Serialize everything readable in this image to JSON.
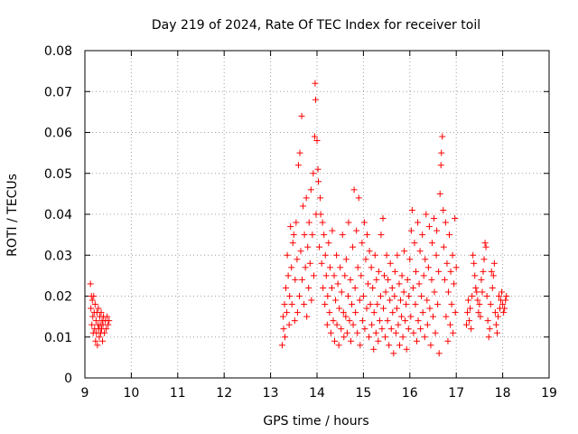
{
  "chart_data": {
    "type": "scatter",
    "title": "Day 219 of 2024, Rate Of TEC Index for receiver toil",
    "xlabel": "GPS time / hours",
    "ylabel": "ROTI / TECUs",
    "xlim": [
      9,
      19
    ],
    "ylim": [
      0,
      0.08
    ],
    "xticks": [
      "9",
      "10",
      "11",
      "12",
      "13",
      "14",
      "15",
      "16",
      "17",
      "18",
      "19"
    ],
    "yticks": [
      "0",
      "0.01",
      "0.02",
      "0.03",
      "0.04",
      "0.05",
      "0.06",
      "0.07",
      "0.08"
    ],
    "grid": true,
    "marker": "+",
    "series": [
      {
        "name": "ROTI",
        "color": "#ff0000",
        "points": [
          [
            9.12,
            0.023
          ],
          [
            9.13,
            0.017
          ],
          [
            9.14,
            0.02
          ],
          [
            9.15,
            0.013
          ],
          [
            9.16,
            0.019
          ],
          [
            9.17,
            0.015
          ],
          [
            9.18,
            0.011
          ],
          [
            9.19,
            0.02
          ],
          [
            9.2,
            0.016
          ],
          [
            9.21,
            0.012
          ],
          [
            9.22,
            0.018
          ],
          [
            9.23,
            0.009
          ],
          [
            9.24,
            0.014
          ],
          [
            9.25,
            0.011
          ],
          [
            9.26,
            0.016
          ],
          [
            9.27,
            0.008
          ],
          [
            9.28,
            0.013
          ],
          [
            9.29,
            0.017
          ],
          [
            9.3,
            0.012
          ],
          [
            9.31,
            0.01
          ],
          [
            9.32,
            0.015
          ],
          [
            9.33,
            0.013
          ],
          [
            9.34,
            0.011
          ],
          [
            9.35,
            0.016
          ],
          [
            9.36,
            0.012
          ],
          [
            9.37,
            0.014
          ],
          [
            9.38,
            0.009
          ],
          [
            9.39,
            0.013
          ],
          [
            9.4,
            0.015
          ],
          [
            9.42,
            0.011
          ],
          [
            9.44,
            0.014
          ],
          [
            9.46,
            0.012
          ],
          [
            9.48,
            0.015
          ],
          [
            9.5,
            0.013
          ],
          [
            9.52,
            0.014
          ],
          [
            13.25,
            0.008
          ],
          [
            13.27,
            0.015
          ],
          [
            13.28,
            0.012
          ],
          [
            13.3,
            0.018
          ],
          [
            13.31,
            0.01
          ],
          [
            13.33,
            0.022
          ],
          [
            13.35,
            0.016
          ],
          [
            13.36,
            0.03
          ],
          [
            13.38,
            0.025
          ],
          [
            13.4,
            0.013
          ],
          [
            13.41,
            0.02
          ],
          [
            13.43,
            0.037
          ],
          [
            13.45,
            0.027
          ],
          [
            13.46,
            0.018
          ],
          [
            13.48,
            0.033
          ],
          [
            13.5,
            0.035
          ],
          [
            13.52,
            0.014
          ],
          [
            13.53,
            0.024
          ],
          [
            13.55,
            0.038
          ],
          [
            13.57,
            0.029
          ],
          [
            13.58,
            0.016
          ],
          [
            13.6,
            0.052
          ],
          [
            13.62,
            0.02
          ],
          [
            13.63,
            0.055
          ],
          [
            13.65,
            0.031
          ],
          [
            13.67,
            0.064
          ],
          [
            13.68,
            0.024
          ],
          [
            13.7,
            0.042
          ],
          [
            13.72,
            0.018
          ],
          [
            13.73,
            0.035
          ],
          [
            13.75,
            0.027
          ],
          [
            13.77,
            0.044
          ],
          [
            13.78,
            0.015
          ],
          [
            13.8,
            0.032
          ],
          [
            13.82,
            0.022
          ],
          [
            13.83,
            0.038
          ],
          [
            13.85,
            0.028
          ],
          [
            13.87,
            0.046
          ],
          [
            13.88,
            0.019
          ],
          [
            13.9,
            0.035
          ],
          [
            13.92,
            0.05
          ],
          [
            13.93,
            0.025
          ],
          [
            13.95,
            0.059
          ],
          [
            13.96,
            0.072
          ],
          [
            13.97,
            0.068
          ],
          [
            13.98,
            0.04
          ],
          [
            14.0,
            0.058
          ],
          [
            14.02,
            0.051
          ],
          [
            14.03,
            0.048
          ],
          [
            14.05,
            0.032
          ],
          [
            14.07,
            0.044
          ],
          [
            14.08,
            0.04
          ],
          [
            14.1,
            0.028
          ],
          [
            14.12,
            0.038
          ],
          [
            14.13,
            0.022
          ],
          [
            14.15,
            0.035
          ],
          [
            14.17,
            0.018
          ],
          [
            14.18,
            0.03
          ],
          [
            14.2,
            0.025
          ],
          [
            14.22,
            0.013
          ],
          [
            14.23,
            0.02
          ],
          [
            14.25,
            0.033
          ],
          [
            14.27,
            0.016
          ],
          [
            14.28,
            0.027
          ],
          [
            14.3,
            0.011
          ],
          [
            14.32,
            0.022
          ],
          [
            14.33,
            0.036
          ],
          [
            14.35,
            0.014
          ],
          [
            14.37,
            0.025
          ],
          [
            14.38,
            0.009
          ],
          [
            14.4,
            0.019
          ],
          [
            14.42,
            0.03
          ],
          [
            14.43,
            0.013
          ],
          [
            14.45,
            0.023
          ],
          [
            14.47,
            0.008
          ],
          [
            14.48,
            0.017
          ],
          [
            14.5,
            0.027
          ],
          [
            14.52,
            0.012
          ],
          [
            14.53,
            0.021
          ],
          [
            14.55,
            0.035
          ],
          [
            14.57,
            0.016
          ],
          [
            14.58,
            0.01
          ],
          [
            14.6,
            0.025
          ],
          [
            14.62,
            0.015
          ],
          [
            14.63,
            0.029
          ],
          [
            14.65,
            0.011
          ],
          [
            14.67,
            0.02
          ],
          [
            14.68,
            0.038
          ],
          [
            14.7,
            0.014
          ],
          [
            14.72,
            0.024
          ],
          [
            14.73,
            0.009
          ],
          [
            14.75,
            0.018
          ],
          [
            14.77,
            0.032
          ],
          [
            14.78,
            0.013
          ],
          [
            14.8,
            0.046
          ],
          [
            14.82,
            0.022
          ],
          [
            14.83,
            0.016
          ],
          [
            14.85,
            0.036
          ],
          [
            14.87,
            0.011
          ],
          [
            14.88,
            0.027
          ],
          [
            14.9,
            0.044
          ],
          [
            14.92,
            0.019
          ],
          [
            14.93,
            0.008
          ],
          [
            14.95,
            0.025
          ],
          [
            14.97,
            0.033
          ],
          [
            14.98,
            0.014
          ],
          [
            15.0,
            0.02
          ],
          [
            15.02,
            0.038
          ],
          [
            15.03,
            0.012
          ],
          [
            15.05,
            0.029
          ],
          [
            15.07,
            0.017
          ],
          [
            15.08,
            0.035
          ],
          [
            15.1,
            0.023
          ],
          [
            15.12,
            0.01
          ],
          [
            15.13,
            0.031
          ],
          [
            15.15,
            0.018
          ],
          [
            15.17,
            0.027
          ],
          [
            15.18,
            0.013
          ],
          [
            15.2,
            0.022
          ],
          [
            15.22,
            0.007
          ],
          [
            15.23,
            0.016
          ],
          [
            15.25,
            0.03
          ],
          [
            15.27,
            0.011
          ],
          [
            15.28,
            0.024
          ],
          [
            15.3,
            0.018
          ],
          [
            15.32,
            0.009
          ],
          [
            15.33,
            0.026
          ],
          [
            15.35,
            0.014
          ],
          [
            15.37,
            0.02
          ],
          [
            15.38,
            0.035
          ],
          [
            15.4,
            0.012
          ],
          [
            15.42,
            0.039
          ],
          [
            15.43,
            0.017
          ],
          [
            15.45,
            0.025
          ],
          [
            15.47,
            0.01
          ],
          [
            15.48,
            0.021
          ],
          [
            15.5,
            0.03
          ],
          [
            15.52,
            0.014
          ],
          [
            15.53,
            0.024
          ],
          [
            15.55,
            0.008
          ],
          [
            15.57,
            0.019
          ],
          [
            15.58,
            0.028
          ],
          [
            15.6,
            0.012
          ],
          [
            15.62,
            0.022
          ],
          [
            15.63,
            0.016
          ],
          [
            15.65,
            0.006
          ],
          [
            15.67,
            0.02
          ],
          [
            15.68,
            0.026
          ],
          [
            15.7,
            0.011
          ],
          [
            15.72,
            0.017
          ],
          [
            15.73,
            0.03
          ],
          [
            15.75,
            0.013
          ],
          [
            15.77,
            0.023
          ],
          [
            15.78,
            0.008
          ],
          [
            15.8,
            0.019
          ],
          [
            15.82,
            0.015
          ],
          [
            15.83,
            0.025
          ],
          [
            15.85,
            0.01
          ],
          [
            15.87,
            0.021
          ],
          [
            15.88,
            0.031
          ],
          [
            15.9,
            0.014
          ],
          [
            15.92,
            0.018
          ],
          [
            15.93,
            0.007
          ],
          [
            15.95,
            0.024
          ],
          [
            15.97,
            0.012
          ],
          [
            15.98,
            0.02
          ],
          [
            16.0,
            0.029
          ],
          [
            16.02,
            0.015
          ],
          [
            16.03,
            0.036
          ],
          [
            16.05,
            0.041
          ],
          [
            16.07,
            0.022
          ],
          [
            16.08,
            0.011
          ],
          [
            16.1,
            0.033
          ],
          [
            16.12,
            0.018
          ],
          [
            16.13,
            0.026
          ],
          [
            16.15,
            0.009
          ],
          [
            16.17,
            0.038
          ],
          [
            16.18,
            0.014
          ],
          [
            16.2,
            0.023
          ],
          [
            16.22,
            0.031
          ],
          [
            16.23,
            0.012
          ],
          [
            16.25,
            0.02
          ],
          [
            16.27,
            0.035
          ],
          [
            16.28,
            0.016
          ],
          [
            16.3,
            0.025
          ],
          [
            16.32,
            0.01
          ],
          [
            16.33,
            0.029
          ],
          [
            16.35,
            0.04
          ],
          [
            16.37,
            0.019
          ],
          [
            16.38,
            0.013
          ],
          [
            16.4,
            0.027
          ],
          [
            16.42,
            0.037
          ],
          [
            16.43,
            0.017
          ],
          [
            16.45,
            0.008
          ],
          [
            16.47,
            0.024
          ],
          [
            16.48,
            0.033
          ],
          [
            16.5,
            0.015
          ],
          [
            16.52,
            0.039
          ],
          [
            16.53,
            0.021
          ],
          [
            16.55,
            0.011
          ],
          [
            16.57,
            0.03
          ],
          [
            16.58,
            0.036
          ],
          [
            16.6,
            0.018
          ],
          [
            16.62,
            0.026
          ],
          [
            16.63,
            0.006
          ],
          [
            16.65,
            0.045
          ],
          [
            16.67,
            0.052
          ],
          [
            16.68,
            0.055
          ],
          [
            16.7,
            0.059
          ],
          [
            16.72,
            0.041
          ],
          [
            16.73,
            0.032
          ],
          [
            16.75,
            0.024
          ],
          [
            16.77,
            0.038
          ],
          [
            16.78,
            0.015
          ],
          [
            16.8,
            0.028
          ],
          [
            16.82,
            0.009
          ],
          [
            16.83,
            0.021
          ],
          [
            16.85,
            0.035
          ],
          [
            16.87,
            0.013
          ],
          [
            16.88,
            0.026
          ],
          [
            16.9,
            0.018
          ],
          [
            16.92,
            0.03
          ],
          [
            16.93,
            0.011
          ],
          [
            16.95,
            0.023
          ],
          [
            16.97,
            0.039
          ],
          [
            16.98,
            0.016
          ],
          [
            17.0,
            0.027
          ],
          [
            17.22,
            0.013
          ],
          [
            17.24,
            0.016
          ],
          [
            17.26,
            0.019
          ],
          [
            17.28,
            0.014
          ],
          [
            17.3,
            0.017
          ],
          [
            17.32,
            0.012
          ],
          [
            17.34,
            0.02
          ],
          [
            17.36,
            0.03
          ],
          [
            17.38,
            0.028
          ],
          [
            17.4,
            0.025
          ],
          [
            17.42,
            0.022
          ],
          [
            17.44,
            0.021
          ],
          [
            17.46,
            0.019
          ],
          [
            17.48,
            0.016
          ],
          [
            17.5,
            0.018
          ],
          [
            17.52,
            0.015
          ],
          [
            17.54,
            0.024
          ],
          [
            17.56,
            0.021
          ],
          [
            17.58,
            0.026
          ],
          [
            17.6,
            0.029
          ],
          [
            17.62,
            0.033
          ],
          [
            17.64,
            0.032
          ],
          [
            17.66,
            0.02
          ],
          [
            17.68,
            0.014
          ],
          [
            17.7,
            0.01
          ],
          [
            17.72,
            0.012
          ],
          [
            17.74,
            0.018
          ],
          [
            17.76,
            0.026
          ],
          [
            17.78,
            0.022
          ],
          [
            17.8,
            0.025
          ],
          [
            17.82,
            0.028
          ],
          [
            17.84,
            0.016
          ],
          [
            17.86,
            0.013
          ],
          [
            17.88,
            0.011
          ],
          [
            17.9,
            0.015
          ],
          [
            17.92,
            0.02
          ],
          [
            17.94,
            0.017
          ],
          [
            17.96,
            0.019
          ],
          [
            17.98,
            0.021
          ],
          [
            18.0,
            0.018
          ],
          [
            18.02,
            0.016
          ],
          [
            18.04,
            0.017
          ],
          [
            18.06,
            0.019
          ],
          [
            18.08,
            0.02
          ]
        ]
      }
    ]
  }
}
